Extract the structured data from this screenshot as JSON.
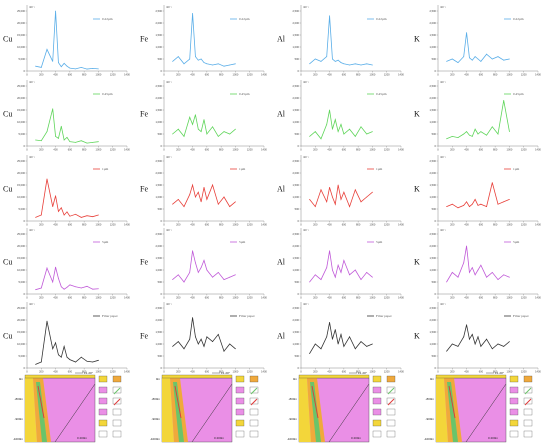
{
  "elements": [
    "Cu",
    "Fe",
    "Al",
    "K"
  ],
  "rows": [
    {
      "name": "0.22µm",
      "color": "#5aaee8"
    },
    {
      "name": "0.45µm",
      "color": "#5fd55a"
    },
    {
      "name": "1µm",
      "color": "#e8403a"
    },
    {
      "name": "5µm",
      "color": "#c05ad8"
    },
    {
      "name": "Filter paper",
      "color": "#333333"
    }
  ],
  "y_unit": "/10⁻⁶",
  "x_ticks": [
    "0",
    "200",
    "400",
    "600",
    "800",
    "1000",
    "1200",
    "1400"
  ],
  "chart_data": [
    {
      "type": "line",
      "element": "Cu",
      "xlim": [
        0,
        1400
      ],
      "x": [
        120,
        200,
        280,
        360,
        400,
        440,
        480,
        520,
        560,
        600,
        680,
        760,
        840,
        920,
        1000
      ],
      "yticks": [
        "0",
        "5,000",
        "10,000",
        "15,000",
        "20,000",
        "25,000"
      ],
      "series": [
        {
          "name": "0.22µm",
          "values": [
            2000,
            1500,
            9000,
            4000,
            25000,
            3500,
            1800,
            3200,
            2000,
            1200,
            900,
            1500,
            800,
            1100,
            900
          ]
        },
        {
          "name": "0.45µm",
          "values": [
            2500,
            2200,
            6000,
            15500,
            4000,
            3200,
            8200,
            2500,
            3600,
            1800,
            1500,
            2200,
            1200,
            1500,
            1800
          ]
        },
        {
          "name": "1µm",
          "values": [
            1500,
            2500,
            17500,
            6000,
            10500,
            4000,
            5500,
            2500,
            3800,
            2000,
            2800,
            1500,
            2200,
            1800,
            2500
          ]
        },
        {
          "name": "5µm",
          "values": [
            1800,
            2500,
            10800,
            5000,
            11200,
            6500,
            3000,
            2000,
            2800,
            3800,
            3000,
            2500,
            3200,
            2000,
            2200
          ]
        },
        {
          "name": "Filter paper",
          "values": [
            1500,
            2500,
            19500,
            8000,
            10500,
            5500,
            4500,
            9000,
            4500,
            3500,
            2500,
            4500,
            2800,
            2500,
            3200
          ]
        }
      ]
    },
    {
      "type": "line",
      "element": "Fe",
      "xlim": [
        0,
        1400
      ],
      "x": [
        120,
        200,
        280,
        360,
        400,
        440,
        480,
        520,
        560,
        600,
        680,
        760,
        840,
        920,
        1000
      ],
      "yticks": [
        "0",
        "500",
        "1,000",
        "1,500",
        "2,000",
        "2,500"
      ],
      "series": [
        {
          "name": "0.22µm",
          "values": [
            400,
            600,
            300,
            500,
            2400,
            600,
            450,
            500,
            350,
            300,
            250,
            300,
            200,
            250,
            300
          ]
        },
        {
          "name": "0.45µm",
          "values": [
            500,
            700,
            400,
            1200,
            900,
            1300,
            700,
            600,
            1100,
            500,
            800,
            400,
            600,
            500,
            700
          ]
        },
        {
          "name": "1µm",
          "values": [
            700,
            900,
            600,
            1100,
            1500,
            1000,
            1200,
            800,
            1400,
            900,
            1500,
            700,
            1000,
            600,
            800
          ]
        },
        {
          "name": "5µm",
          "values": [
            600,
            800,
            500,
            900,
            1800,
            1300,
            900,
            1100,
            1400,
            1000,
            700,
            900,
            600,
            700,
            800
          ]
        },
        {
          "name": "Filter paper",
          "values": [
            900,
            1100,
            800,
            1200,
            2100,
            1300,
            1000,
            1200,
            900,
            1300,
            1100,
            1400,
            700,
            1000,
            800
          ]
        }
      ]
    },
    {
      "type": "line",
      "element": "Al",
      "xlim": [
        0,
        1400
      ],
      "x": [
        120,
        200,
        280,
        360,
        400,
        440,
        480,
        520,
        560,
        600,
        680,
        760,
        840,
        920,
        1000
      ],
      "yticks": [
        "0",
        "500",
        "1,000",
        "1,500",
        "2,000",
        "2,500"
      ],
      "series": [
        {
          "name": "0.22µm",
          "values": [
            300,
            500,
            400,
            600,
            2300,
            500,
            400,
            450,
            350,
            300,
            250,
            300,
            250,
            300,
            250
          ]
        },
        {
          "name": "0.45µm",
          "values": [
            400,
            600,
            300,
            900,
            1500,
            700,
            1100,
            600,
            900,
            500,
            700,
            400,
            800,
            500,
            600
          ]
        },
        {
          "name": "1µm",
          "values": [
            900,
            600,
            1300,
            800,
            1400,
            1000,
            700,
            1500,
            900,
            1200,
            600,
            1300,
            800,
            1000,
            1200
          ]
        },
        {
          "name": "5µm",
          "values": [
            500,
            800,
            600,
            1100,
            1800,
            1000,
            700,
            1200,
            900,
            1400,
            800,
            1000,
            600,
            900,
            700
          ]
        },
        {
          "name": "Filter paper",
          "values": [
            600,
            1000,
            800,
            1300,
            1900,
            1200,
            1600,
            1000,
            1400,
            900,
            1300,
            800,
            1100,
            900,
            1000
          ]
        }
      ]
    },
    {
      "type": "line",
      "element": "K",
      "xlim": [
        0,
        1400
      ],
      "x": [
        120,
        200,
        280,
        360,
        400,
        440,
        480,
        520,
        560,
        600,
        680,
        760,
        840,
        920,
        1000
      ],
      "yticks": [
        "0",
        "500",
        "1,000",
        "1,500",
        "2,000",
        "2,500"
      ],
      "series": [
        {
          "name": "0.22µm",
          "values": [
            400,
            500,
            350,
            600,
            1600,
            550,
            450,
            600,
            500,
            400,
            700,
            500,
            600,
            450,
            500
          ]
        },
        {
          "name": "0.45µm",
          "values": [
            300,
            400,
            350,
            500,
            600,
            450,
            400,
            700,
            500,
            600,
            450,
            800,
            500,
            1900,
            600
          ]
        },
        {
          "name": "1µm",
          "values": [
            600,
            700,
            550,
            650,
            800,
            600,
            700,
            900,
            650,
            700,
            600,
            1600,
            700,
            800,
            900
          ]
        },
        {
          "name": "5µm",
          "values": [
            500,
            900,
            700,
            1300,
            2000,
            900,
            1100,
            800,
            1000,
            1200,
            700,
            900,
            600,
            800,
            700
          ]
        },
        {
          "name": "Filter paper",
          "values": [
            700,
            1000,
            900,
            1300,
            1800,
            1200,
            1400,
            1000,
            1300,
            900,
            1200,
            800,
            1000,
            900,
            1100
          ]
        }
      ]
    }
  ],
  "section": {
    "depth_labels": [
      "0m",
      "-800m",
      "-900m",
      "-1000m"
    ],
    "fault_label": "F1 20°",
    "scale_label": "0 200m",
    "colors": {
      "magenta": "#ea8fe6",
      "yellow": "#f3d63a",
      "orange": "#f0a93c",
      "green": "#6bc46a",
      "red": "#e03a3a"
    }
  }
}
